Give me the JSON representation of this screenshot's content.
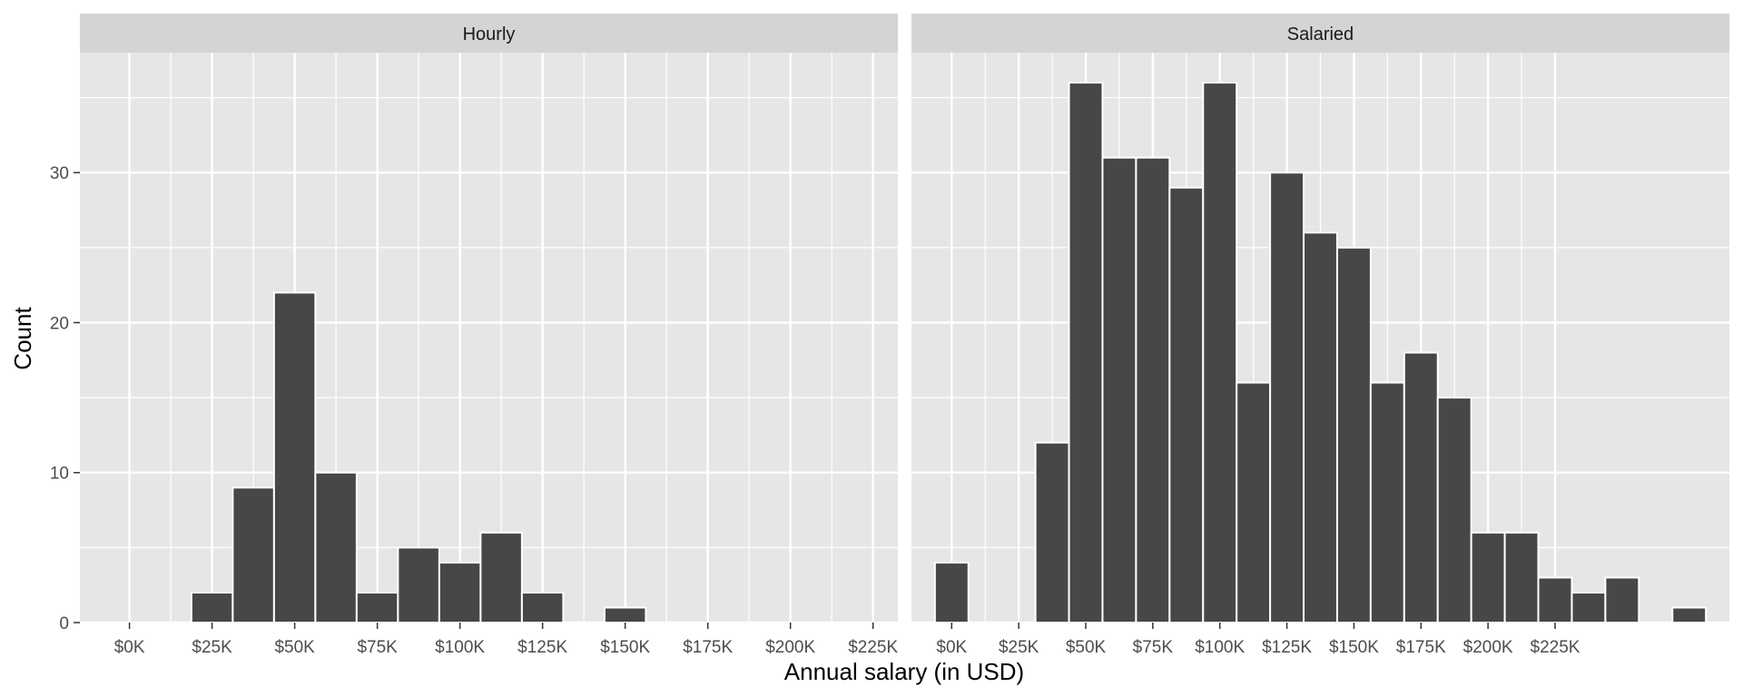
{
  "chart_data": {
    "type": "bar",
    "subtype": "histogram",
    "xlabel": "Annual salary (in USD)",
    "ylabel": "Count",
    "binwidth": 12500,
    "xlim": [
      -15000,
      232500
    ],
    "ylim": [
      0,
      38
    ],
    "x_ticks": [
      0,
      25000,
      50000,
      75000,
      100000,
      125000,
      150000,
      175000,
      200000,
      225000
    ],
    "x_tick_labels": [
      "$0K",
      "$25K",
      "$50K",
      "$75K",
      "$100K",
      "$125K",
      "$150K",
      "$175K",
      "$200K",
      "$225K"
    ],
    "y_ticks": [
      0,
      10,
      20,
      30
    ],
    "y_tick_labels": [
      "0",
      "10",
      "20",
      "30"
    ],
    "grid": true,
    "legend": "none",
    "colors": {
      "bar_fill": "#474747",
      "bar_outline": "#ffffff",
      "panel_bg": "#e6e6e6",
      "strip_bg": "#d4d4d4",
      "grid": "#ffffff"
    },
    "panels": [
      {
        "title": "Hourly",
        "bins": [
          {
            "x": 0,
            "count": 0
          },
          {
            "x": 12500,
            "count": 0
          },
          {
            "x": 25000,
            "count": 2
          },
          {
            "x": 37500,
            "count": 9
          },
          {
            "x": 50000,
            "count": 22
          },
          {
            "x": 62500,
            "count": 10
          },
          {
            "x": 75000,
            "count": 2
          },
          {
            "x": 87500,
            "count": 5
          },
          {
            "x": 100000,
            "count": 4
          },
          {
            "x": 112500,
            "count": 6
          },
          {
            "x": 125000,
            "count": 2
          },
          {
            "x": 137500,
            "count": 0
          },
          {
            "x": 150000,
            "count": 1
          },
          {
            "x": 162500,
            "count": 0
          },
          {
            "x": 175000,
            "count": 0
          },
          {
            "x": 187500,
            "count": 0
          },
          {
            "x": 200000,
            "count": 0
          },
          {
            "x": 212500,
            "count": 0
          },
          {
            "x": 225000,
            "count": 0
          }
        ]
      },
      {
        "title": "Salaried",
        "bins": [
          {
            "x": 0,
            "count": 4
          },
          {
            "x": 12500,
            "count": 0
          },
          {
            "x": 25000,
            "count": 0
          },
          {
            "x": 37500,
            "count": 12
          },
          {
            "x": 50000,
            "count": 36
          },
          {
            "x": 62500,
            "count": 31
          },
          {
            "x": 75000,
            "count": 31
          },
          {
            "x": 87500,
            "count": 29
          },
          {
            "x": 100000,
            "count": 36
          },
          {
            "x": 112500,
            "count": 16
          },
          {
            "x": 125000,
            "count": 30
          },
          {
            "x": 137500,
            "count": 26
          },
          {
            "x": 150000,
            "count": 25
          },
          {
            "x": 162500,
            "count": 16
          },
          {
            "x": 175000,
            "count": 18
          },
          {
            "x": 187500,
            "count": 15
          },
          {
            "x": 200000,
            "count": 6
          },
          {
            "x": 212500,
            "count": 6
          },
          {
            "x": 225000,
            "count": 3
          },
          {
            "x": 237500,
            "count": 2
          },
          {
            "x": 250000,
            "count": 3
          },
          {
            "x": 262500,
            "count": 0
          },
          {
            "x": 275000,
            "count": 1
          }
        ]
      }
    ]
  }
}
